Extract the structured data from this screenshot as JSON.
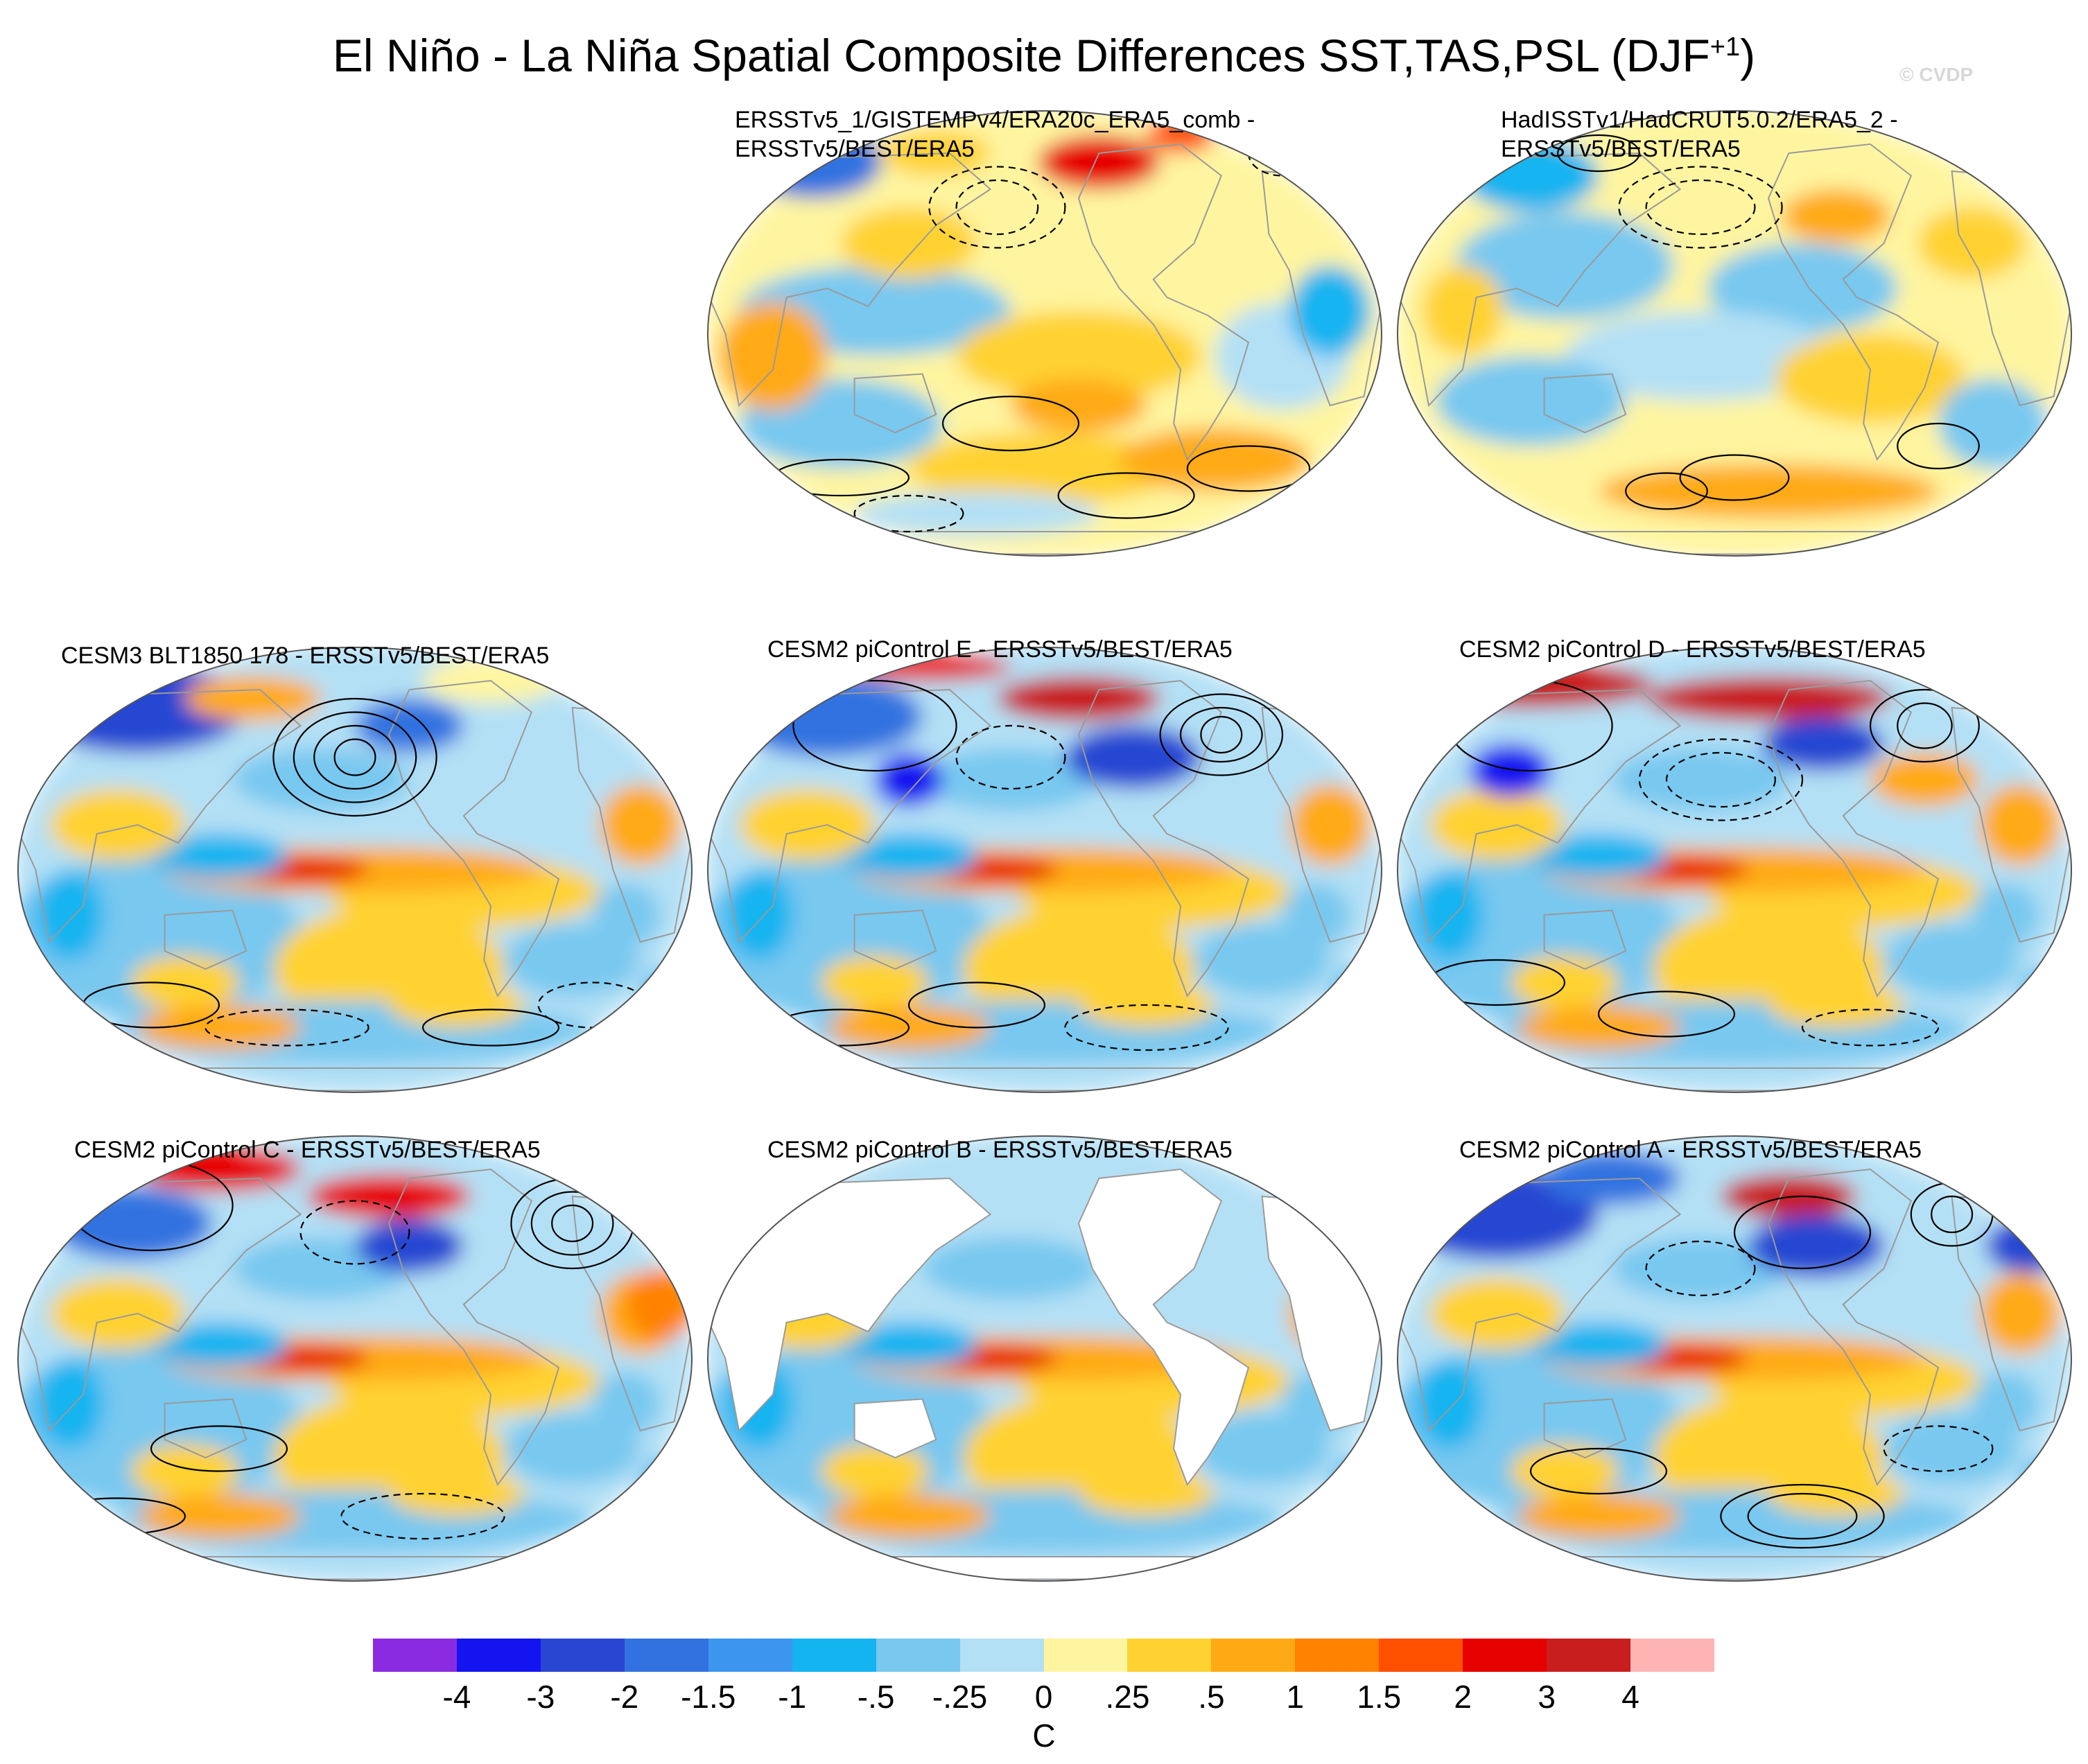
{
  "figure": {
    "title": "El Niño - La Niña Spatial Composite Differences SST,TAS,PSL (DJF",
    "title_superscript": "+1",
    "title_close": ")",
    "copyright": "© CVDP"
  },
  "panels": [
    {
      "id": "obs1",
      "title_lines": [
        "ERSSTv5_1/GISTEMPv4/ERA20c_ERA5_comb -",
        "ERSSTv5/BEST/ERA5"
      ],
      "pattern": "obs1",
      "land_data": true
    },
    {
      "id": "obs2",
      "title_lines": [
        "HadISSTv1/HadCRUT5.0.2/ERA5_2 -",
        "ERSSTv5/BEST/ERA5"
      ],
      "pattern": "obs2",
      "land_data": true
    },
    {
      "id": "cesm3",
      "title_lines": [
        "CESM3 BLT1850 178 - ERSSTv5/BEST/ERA5"
      ],
      "pattern": "model",
      "land_data": true
    },
    {
      "id": "cesm2e",
      "title_lines": [
        "CESM2 piControl E - ERSSTv5/BEST/ERA5"
      ],
      "pattern": "model",
      "land_data": true
    },
    {
      "id": "cesm2d",
      "title_lines": [
        "CESM2 piControl D - ERSSTv5/BEST/ERA5"
      ],
      "pattern": "model",
      "land_data": true
    },
    {
      "id": "cesm2c",
      "title_lines": [
        "CESM2 piControl C - ERSSTv5/BEST/ERA5"
      ],
      "pattern": "model",
      "land_data": true
    },
    {
      "id": "cesm2b",
      "title_lines": [
        "CESM2 piControl B - ERSSTv5/BEST/ERA5"
      ],
      "pattern": "model",
      "land_data": false
    },
    {
      "id": "cesm2a",
      "title_lines": [
        "CESM2 piControl A - ERSSTv5/BEST/ERA5"
      ],
      "pattern": "model",
      "land_data": true
    }
  ],
  "colorbar": {
    "colors": [
      "#8a2be2",
      "#1414f0",
      "#2846d2",
      "#3272e0",
      "#3c96f0",
      "#14b4f0",
      "#78c8f0",
      "#b4e0f5",
      "#fff5a0",
      "#ffd232",
      "#ffaa14",
      "#ff8200",
      "#ff5000",
      "#e60000",
      "#c81e1e",
      "#ffb4b4"
    ],
    "labels": [
      "-4",
      "-3",
      "-2",
      "-1.5",
      "-1",
      "-.5",
      "-.25",
      "0",
      ".25",
      ".5",
      "1",
      "1.5",
      "2",
      "3",
      "4"
    ],
    "units": "C"
  }
}
